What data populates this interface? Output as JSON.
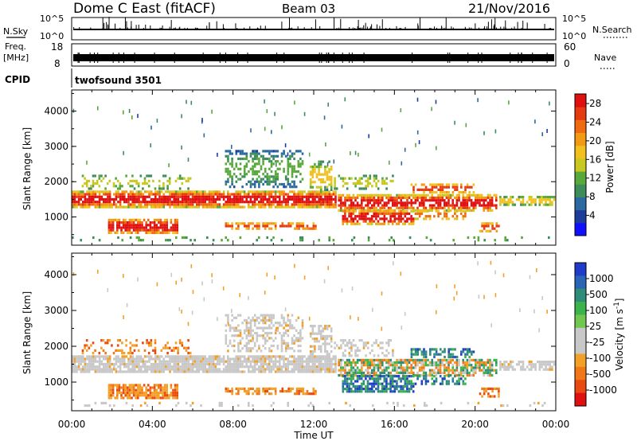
{
  "header": {
    "title": "Dome C East (fitACF)",
    "beam": "Beam 03",
    "date": "21/Nov/2016"
  },
  "top_panels": {
    "nsky_label": "N.Sky",
    "nsky_ticks": [
      "10^5",
      "10^0"
    ],
    "nsearch_label": "N.Search",
    "freq_label": "Freq.",
    "freq_unit": "[MHz]",
    "freq_ticks": [
      "18",
      "8"
    ],
    "nave_label": "Nave",
    "nave_ticks": [
      "60",
      "0"
    ],
    "cpid_label": "CPID",
    "cpid_value": "twofsound 3501"
  },
  "chart_data": [
    {
      "type": "heatmap",
      "name": "power",
      "ylabel": "Slant Range [km]",
      "yticks": [
        1000,
        2000,
        3000,
        4000
      ],
      "ylim": [
        200,
        4600
      ],
      "x_ticks": [
        "00:00",
        "04:00",
        "08:00",
        "12:00",
        "16:00",
        "20:00",
        "00:00"
      ],
      "colorbar": {
        "label": "Power [dB]",
        "ticks": [
          "4",
          "8",
          "12",
          "16",
          "20",
          "24",
          "28"
        ],
        "colors": [
          "#1010ff",
          "#1e3c9c",
          "#2a6aa0",
          "#3c8c5c",
          "#58a83c",
          "#c8c820",
          "#f2c01c",
          "#f29a14",
          "#f06a10",
          "#e83a10",
          "#e01010"
        ]
      }
    },
    {
      "type": "heatmap",
      "name": "velocity",
      "ylabel": "Slant Range [km]",
      "yticks": [
        1000,
        2000,
        3000,
        4000
      ],
      "ylim": [
        200,
        4600
      ],
      "x_ticks": [
        "00:00",
        "04:00",
        "08:00",
        "12:00",
        "16:00",
        "20:00",
        "00:00"
      ],
      "xlabel": "Time UT",
      "colorbar": {
        "label": "Velocity [m s^-1]",
        "ticks": [
          "1000",
          "500",
          "100",
          "25",
          "-25",
          "-100",
          "-500",
          "-1000"
        ],
        "colors": [
          "#1e3cc8",
          "#2a64b4",
          "#2e8c78",
          "#3cb44c",
          "#70c850",
          "#c8c8c8",
          "#c8c8c8",
          "#f2a028",
          "#f07818",
          "#e84a10",
          "#e01010"
        ]
      }
    }
  ]
}
